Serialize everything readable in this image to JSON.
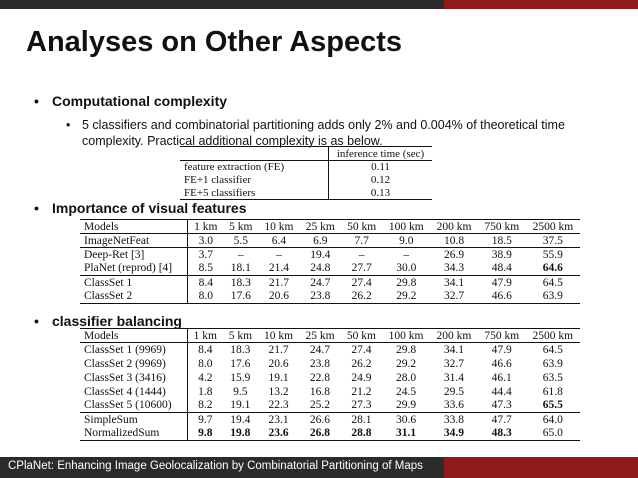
{
  "slide": {
    "title": "Analyses on Other Aspects",
    "bullet1": "Computational complexity",
    "sub1": "5 classifiers and combinatorial partitioning adds only 2% and 0.004% of theoretical time complexity. Practical additional complexity is as below.",
    "bullet2": "Importance of visual features",
    "bullet3": "classifier balancing",
    "footer": "CPlaNet: Enhancing Image Geolocalization by Combinatorial Partitioning of Maps"
  },
  "table1": {
    "header": [
      "",
      "inference time (sec)"
    ],
    "rows": [
      [
        "feature extraction (FE)",
        "0.11"
      ],
      [
        "FE+1 classifier",
        "0.12"
      ],
      [
        "FE+5 classifiers",
        "0.13"
      ]
    ]
  },
  "table2": {
    "header": [
      "Models",
      "1 km",
      "5 km",
      "10 km",
      "25 km",
      "50 km",
      "100 km",
      "200 km",
      "750 km",
      "2500 km"
    ],
    "rows": [
      [
        "ImageNetFeat",
        "3.0",
        "5.5",
        "6.4",
        "6.9",
        "7.7",
        "9.0",
        "10.8",
        "18.5",
        "37.5"
      ],
      [
        "Deep-Ret [3]",
        "3.7",
        "–",
        "–",
        "19.4",
        "–",
        "–",
        "26.9",
        "38.9",
        "55.9"
      ],
      [
        "PlaNet (reprod) [4]",
        "8.5",
        "18.1",
        "21.4",
        "24.8",
        "27.7",
        "30.0",
        "34.3",
        "48.4",
        "64.6"
      ],
      [
        "ClassSet 1",
        "8.4",
        "18.3",
        "21.7",
        "24.7",
        "27.4",
        "29.8",
        "34.1",
        "47.9",
        "64.5"
      ],
      [
        "ClassSet 2",
        "8.0",
        "17.6",
        "20.6",
        "23.8",
        "26.2",
        "29.2",
        "32.7",
        "46.6",
        "63.9"
      ]
    ]
  },
  "table3": {
    "header": [
      "Models",
      "1 km",
      "5 km",
      "10 km",
      "25 km",
      "50 km",
      "100 km",
      "200 km",
      "750 km",
      "2500 km"
    ],
    "rows": [
      [
        "ClassSet 1 (9969)",
        "8.4",
        "18.3",
        "21.7",
        "24.7",
        "27.4",
        "29.8",
        "34.1",
        "47.9",
        "64.5"
      ],
      [
        "ClassSet 2 (9969)",
        "8.0",
        "17.6",
        "20.6",
        "23.8",
        "26.2",
        "29.2",
        "32.7",
        "46.6",
        "63.9"
      ],
      [
        "ClassSet 3 (3416)",
        "4.2",
        "15.9",
        "19.1",
        "22.8",
        "24.9",
        "28.0",
        "31.4",
        "46.1",
        "63.5"
      ],
      [
        "ClassSet 4 (1444)",
        "1.8",
        "9.5",
        "13.2",
        "16.8",
        "21.2",
        "24.5",
        "29.5",
        "44.4",
        "61.8"
      ],
      [
        "ClassSet 5 (10600)",
        "8.2",
        "19.1",
        "22.3",
        "25.2",
        "27.3",
        "29.9",
        "33.6",
        "47.3",
        "65.5"
      ],
      [
        "SimpleSum",
        "9.7",
        "19.4",
        "23.1",
        "26.6",
        "28.1",
        "30.6",
        "33.8",
        "47.7",
        "64.0"
      ],
      [
        "NormalizedSum",
        "9.8",
        "19.8",
        "23.6",
        "26.8",
        "28.8",
        "31.1",
        "34.9",
        "48.3",
        "65.0"
      ]
    ]
  }
}
